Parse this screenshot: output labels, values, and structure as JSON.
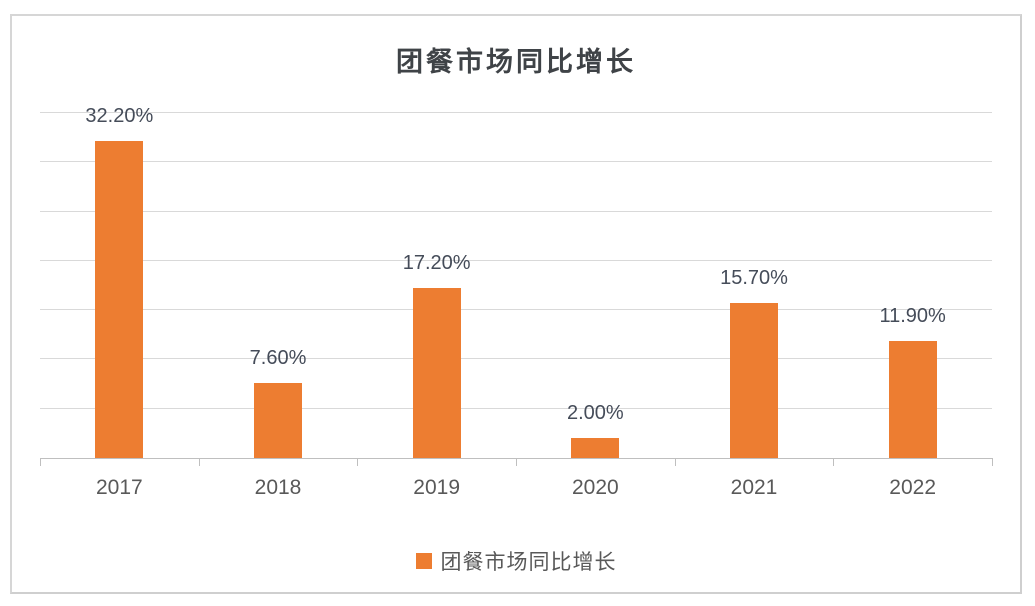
{
  "chart_data": {
    "type": "bar",
    "title": "团餐市场同比增长",
    "categories": [
      "2017",
      "2018",
      "2019",
      "2020",
      "2021",
      "2022"
    ],
    "values": [
      32.2,
      7.6,
      17.2,
      2.0,
      15.7,
      11.9
    ],
    "data_labels": [
      "32.20%",
      "7.60%",
      "17.20%",
      "2.00%",
      "15.70%",
      "11.90%"
    ],
    "ylim": [
      0,
      35
    ],
    "gridline_step": 5,
    "grid": true,
    "y_axis_tick_labels_visible": false,
    "legend": {
      "label": "团餐市场同比增长",
      "position": "bottom"
    },
    "colors": {
      "bar": "#ED7D31",
      "gridline": "#D9D9D9",
      "axis": "#BFBFBF",
      "title_text": "#3F4347",
      "data_label_text": "#454C59",
      "axis_label_text": "#595959",
      "panel_border": "#D6D6D6",
      "background": "#FFFFFF"
    }
  }
}
